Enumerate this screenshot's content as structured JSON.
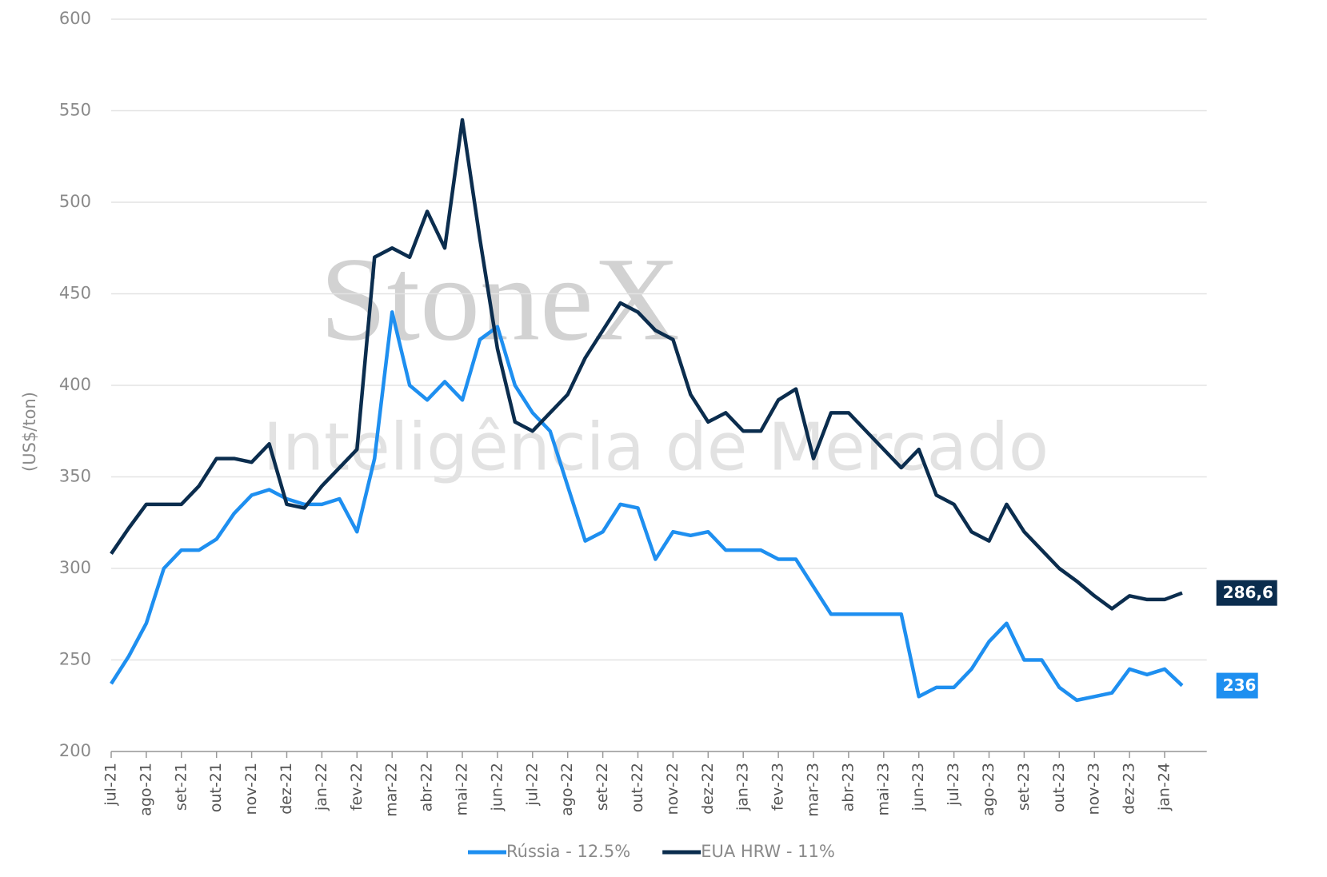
{
  "chart_data": {
    "type": "line",
    "watermark": [
      "StoneX",
      "Inteligência de Mercado"
    ],
    "ylabel": "(US$/ton)",
    "categories": [
      "jul-21",
      null,
      "ago-21",
      null,
      "set-21",
      null,
      "out-21",
      null,
      "nov-21",
      null,
      "dez-21",
      null,
      "jan-22",
      null,
      "fev-22",
      null,
      "mar-22",
      null,
      "abr-22",
      null,
      "mai-22",
      null,
      "jun-22",
      null,
      "jul-22",
      null,
      "ago-22",
      null,
      "set-22",
      null,
      "out-22",
      null,
      "nov-22",
      null,
      "dez-22",
      null,
      "jan-23",
      null,
      "fev-23",
      null,
      "mar-23",
      null,
      "abr-23",
      null,
      "mai-23",
      null,
      "jun-23",
      null,
      "jul-23",
      null,
      "ago-23",
      null,
      "set-23",
      null,
      "out-23",
      null,
      "nov-23",
      null,
      "dez-23",
      null,
      "jan-24",
      null
    ],
    "series": [
      {
        "name": "Rússia - 12.5%",
        "color": "#1e8ff0",
        "last_label": "236",
        "values": [
          237,
          252,
          270,
          300,
          310,
          310,
          316,
          330,
          340,
          343,
          338,
          335,
          335,
          338,
          320,
          360,
          440,
          400,
          392,
          402,
          392,
          425,
          432,
          400,
          385,
          375,
          345,
          315,
          320,
          335,
          333,
          305,
          320,
          318,
          320,
          310,
          310,
          310,
          305,
          305,
          290,
          275,
          275,
          275,
          275,
          275,
          230,
          235,
          235,
          245,
          260,
          270,
          250,
          250,
          235,
          228,
          230,
          232,
          245,
          242,
          245,
          236
        ]
      },
      {
        "name": "EUA HRW - 11%",
        "color": "#0b2d4e",
        "last_label": "286,6",
        "values": [
          308,
          322,
          335,
          335,
          335,
          345,
          360,
          360,
          358,
          368,
          335,
          333,
          345,
          355,
          365,
          470,
          475,
          470,
          495,
          475,
          545,
          480,
          420,
          380,
          375,
          385,
          395,
          415,
          430,
          445,
          440,
          430,
          425,
          395,
          380,
          385,
          375,
          375,
          392,
          398,
          360,
          385,
          385,
          375,
          365,
          355,
          365,
          340,
          335,
          320,
          315,
          335,
          320,
          310,
          300,
          293,
          285,
          278,
          285,
          283,
          283,
          286.6
        ]
      }
    ],
    "ylim": [
      200,
      600
    ],
    "yticks": [
      200,
      250,
      300,
      350,
      400,
      450,
      500,
      550,
      600
    ],
    "grid": true,
    "legend": "bottom"
  }
}
